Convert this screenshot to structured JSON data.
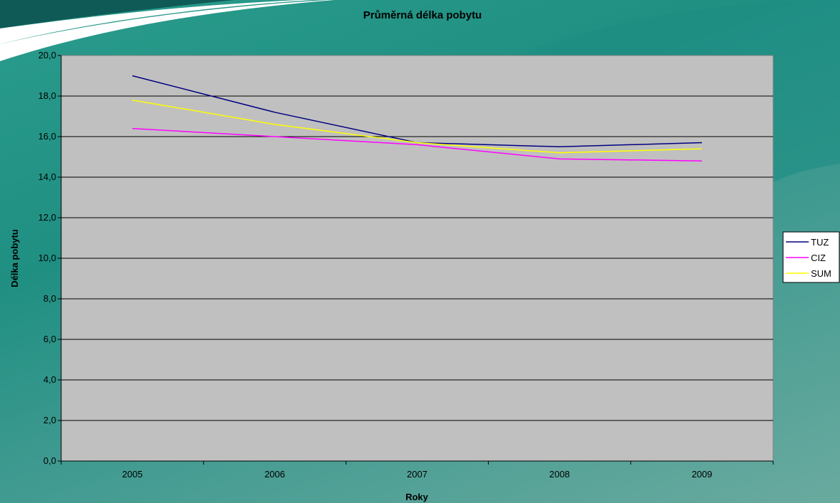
{
  "chart_data": {
    "type": "line",
    "title": "Průměrná délka pobytu",
    "xlabel": "Roky",
    "ylabel": "Délka pobytu",
    "categories": [
      "2005",
      "2006",
      "2007",
      "2008",
      "2009"
    ],
    "ylim": [
      0,
      20
    ],
    "yticks": [
      "0,0",
      "2,0",
      "4,0",
      "6,0",
      "8,0",
      "10,0",
      "12,0",
      "14,0",
      "16,0",
      "18,0",
      "20,0"
    ],
    "grid": true,
    "legend_position": "right",
    "series": [
      {
        "name": "TUZ",
        "color": "#000080",
        "values": [
          19.0,
          17.2,
          15.7,
          15.5,
          15.7
        ]
      },
      {
        "name": "CIZ",
        "color": "#ff00ff",
        "values": [
          16.4,
          16.0,
          15.6,
          14.9,
          14.8
        ]
      },
      {
        "name": "SUM",
        "color": "#ffff00",
        "values": [
          17.8,
          16.6,
          15.7,
          15.2,
          15.4
        ]
      }
    ]
  },
  "colors": {
    "plot_background": "#c0c0c0",
    "gridline": "#000000"
  }
}
